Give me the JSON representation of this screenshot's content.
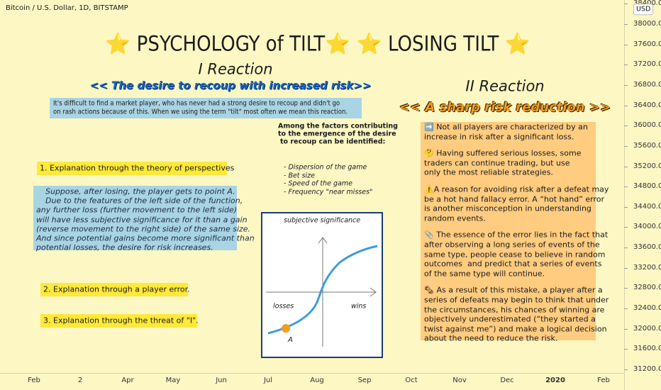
{
  "header": {
    "instrument": "Bitcoin / U.S. Dollar, 1D, BITSTAMP",
    "title": "⭐ PSYCHOLOGY of TILT⭐ ⭐ LOSING TILT ⭐"
  },
  "reaction1": {
    "heading": "I Reaction",
    "subheading": "<< The desire to recoup with increased risk>>",
    "intro": [
      "It's difficult to find a market player, who has never had a strong desire to recoup and didn't go",
      "on rash actions because of this. When we using the term \"tilt\" most often we mean this reaction."
    ],
    "factors_heading": [
      "Among the factors contributing",
      "to the emergence of the desire",
      "to recoup can be identified:"
    ],
    "factors": [
      "- Dispersion of the game",
      "- Bet size",
      "- Speed of the game",
      "- Frequency \"near misses\""
    ],
    "explanations": [
      "1. Explanation through the theory of perspectives",
      "2. Explanation through a player error.",
      "3. Explanation through the threat of \"I\"."
    ],
    "explanation_text": [
      "Suppose, after losing, the player gets to point A.",
      "Due to the features of the left side of the function,",
      "any further loss (further movement to the left side)",
      "will have less subjective significance for it than a gain",
      "(reverse movement to the right side) of the same size.",
      "And since potential gains become more significant than",
      "potential losses, the desire for risk increases."
    ]
  },
  "diagram": {
    "label": "subjective significance",
    "losses": "losses",
    "wins": "wins",
    "point": "A"
  },
  "reaction2": {
    "heading": "II Reaction",
    "subheading": "<< A sharp risk reduction >>",
    "paragraphs": [
      [
        "➡️ Not all players are characterized by an",
        "increase in risk after a significant loss."
      ],
      [
        "🤔 Having suffered serious losses, some",
        "traders can continue trading, but use",
        "only the most reliable strategies."
      ],
      [
        "⚠️A reason for avoiding risk after a defeat may",
        "be a hot hand fallacy error. A “hot hand” error",
        "is another misconception in understanding",
        "random events."
      ],
      [
        "📎 The essence of the error lies in the fact that",
        "after observing a long series of events of the",
        "same type, people cease to believe in random",
        "outcomes  and predict that a series of events",
        "of the same type will continue."
      ],
      [
        "🗞 As a result of this mistake, a player after a",
        "series of defeats may begin to think that under",
        "the circumstances, his chances of winning are",
        "objectively underestimated (“they started a",
        "twist against me”) and make a logical decision",
        "about the need to reduce the risk."
      ]
    ]
  },
  "price_axis": {
    "currency": "USD",
    "labels": [
      "38400.00",
      "38000.00",
      "37600.00",
      "37200.00",
      "36800.00",
      "36400.00",
      "36000.00",
      "35600.00",
      "35200.00",
      "34800.00",
      "34400.00",
      "34000.00",
      "33600.00",
      "33200.00",
      "32800.00",
      "32400.00",
      "32000.00",
      "31600.00",
      "31200.00"
    ]
  },
  "time_axis": {
    "labels": [
      "Feb",
      "2",
      "Apr",
      "May",
      "Jun",
      "Jul",
      "Aug",
      "Sep",
      "Oct",
      "Nov",
      "Dec",
      "2020",
      "Feb"
    ]
  }
}
